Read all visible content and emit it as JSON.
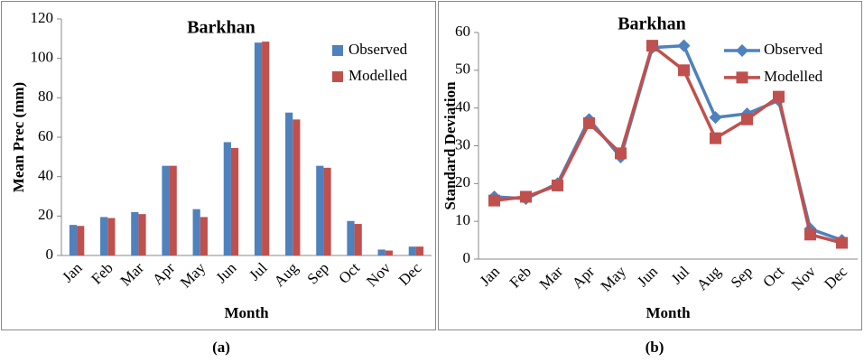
{
  "chart_data": [
    {
      "type": "bar",
      "title": "Barkhan",
      "caption": "(a)",
      "x_label": "Month",
      "y_label": "Mean Prec (mm)",
      "categories": [
        "Jan",
        "Feb",
        "Mar",
        "Apr",
        "May",
        "Jun",
        "Jul",
        "Aug",
        "Sep",
        "Oct",
        "Nov",
        "Dec"
      ],
      "series": [
        {
          "name": "Observed",
          "color": "#4f81bd",
          "values": [
            15.5,
            19.5,
            22,
            45.5,
            23.5,
            57.5,
            108,
            72.5,
            45.5,
            17.5,
            3,
            4.5
          ]
        },
        {
          "name": "Modelled",
          "color": "#c0504d",
          "values": [
            15,
            19,
            21,
            45.5,
            19.5,
            54.5,
            108.5,
            69,
            44.5,
            16,
            2.5,
            4.5
          ]
        }
      ],
      "ylim": [
        0,
        120
      ],
      "yticks": [
        0,
        20,
        40,
        60,
        80,
        100,
        120
      ],
      "grid": false,
      "legend": "upper right"
    },
    {
      "type": "line",
      "title": "Barkhan",
      "caption": "(b)",
      "x_label": "Month",
      "y_label": "Standard Deviation",
      "categories": [
        "Jan",
        "Feb",
        "Mar",
        "Apr",
        "May",
        "Jun",
        "Jul",
        "Aug",
        "Sep",
        "Oct",
        "Nov",
        "Dec"
      ],
      "series": [
        {
          "name": "Observed",
          "color": "#4f81bd",
          "marker": "diamond",
          "values": [
            16.5,
            16,
            20,
            37,
            27,
            56,
            56.5,
            37.5,
            38.5,
            42,
            8,
            5
          ]
        },
        {
          "name": "Modelled",
          "color": "#c0504d",
          "marker": "square",
          "values": [
            15.5,
            16.5,
            19.5,
            36,
            28,
            56.5,
            50,
            32,
            37,
            43,
            6.5,
            4.3
          ]
        }
      ],
      "ylim": [
        0,
        60
      ],
      "yticks": [
        0,
        10,
        20,
        30,
        40,
        50,
        60
      ],
      "grid": false,
      "legend": "upper right"
    }
  ]
}
